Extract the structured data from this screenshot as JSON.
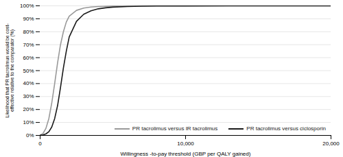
{
  "chart_data": {
    "type": "line",
    "xlabel": "Willingness -to-pay threshold (GBP per QALY gained)",
    "ylabel": "Likelihood that PR tacrolimus would be cost-\neffective relative to the comparator (%)",
    "xlim": [
      0,
      20000
    ],
    "ylim": [
      0,
      1.0
    ],
    "xticks": [
      0,
      {
        "value": 10000,
        "label": "10,000"
      },
      {
        "value": 20000,
        "label": "20,000"
      }
    ],
    "yticks": [
      {
        "value": 0.0,
        "label": "0%"
      },
      {
        "value": 0.1,
        "label": "10%"
      },
      {
        "value": 0.2,
        "label": "20%"
      },
      {
        "value": 0.3,
        "label": "30%"
      },
      {
        "value": 0.4,
        "label": "40%"
      },
      {
        "value": 0.5,
        "label": "50%"
      },
      {
        "value": 0.6,
        "label": "60%"
      },
      {
        "value": 0.7,
        "label": "70%"
      },
      {
        "value": 0.8,
        "label": "80%"
      },
      {
        "value": 0.9,
        "label": "90%"
      },
      {
        "value": 1.0,
        "label": "100%"
      }
    ],
    "grid": "y",
    "legend": "bottom",
    "series": [
      {
        "name": "PR tacrolimus versus IR tacrolimus",
        "color": "#999999",
        "x": [
          0,
          200,
          400,
          600,
          800,
          1000,
          1200,
          1400,
          1600,
          1800,
          2000,
          2500,
          3000,
          3500,
          4000,
          5000,
          6000,
          7000,
          8000,
          10000,
          13000,
          20000
        ],
        "values": [
          0.002,
          0.015,
          0.055,
          0.13,
          0.25,
          0.4,
          0.56,
          0.7,
          0.8,
          0.875,
          0.92,
          0.965,
          0.983,
          0.991,
          0.995,
          0.998,
          0.999,
          0.9995,
          0.9997,
          0.9999,
          1.0,
          1.0
        ]
      },
      {
        "name": "PR tacrolimus versus ciclosporin",
        "color": "#1a1a1a",
        "x": [
          0,
          200,
          400,
          600,
          800,
          1000,
          1200,
          1400,
          1600,
          1800,
          2000,
          2500,
          3000,
          3500,
          4000,
          4500,
          5000,
          6000,
          7000,
          8000,
          10000,
          13000,
          20000
        ],
        "values": [
          0.001,
          0.004,
          0.012,
          0.028,
          0.065,
          0.13,
          0.23,
          0.37,
          0.52,
          0.65,
          0.76,
          0.88,
          0.935,
          0.962,
          0.977,
          0.985,
          0.99,
          0.995,
          0.997,
          0.9985,
          0.9995,
          1.0,
          1.0
        ]
      }
    ]
  }
}
